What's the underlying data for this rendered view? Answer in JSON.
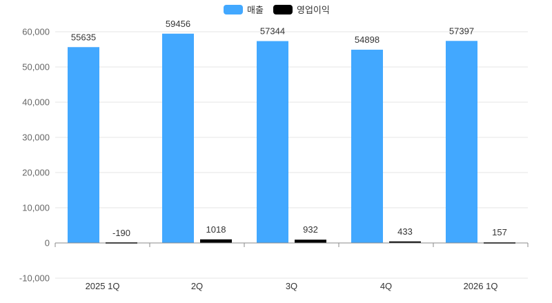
{
  "chart_data": {
    "type": "bar",
    "categories": [
      "2025 1Q",
      "2Q",
      "3Q",
      "4Q",
      "2026 1Q"
    ],
    "series": [
      {
        "name": "매출",
        "values": [
          55635,
          59456,
          57344,
          54898,
          57397
        ],
        "color": "#42a8ff"
      },
      {
        "name": "영업이익",
        "values": [
          -190,
          1018,
          932,
          433,
          157
        ],
        "color": "#000000"
      }
    ],
    "y_ticks": [
      "-10,000",
      "0",
      "10,000",
      "20,000",
      "30,000",
      "40,000",
      "50,000",
      "60,000"
    ],
    "ylim": [
      -10000,
      60000
    ],
    "grid": true,
    "legend_position": "top-center"
  }
}
